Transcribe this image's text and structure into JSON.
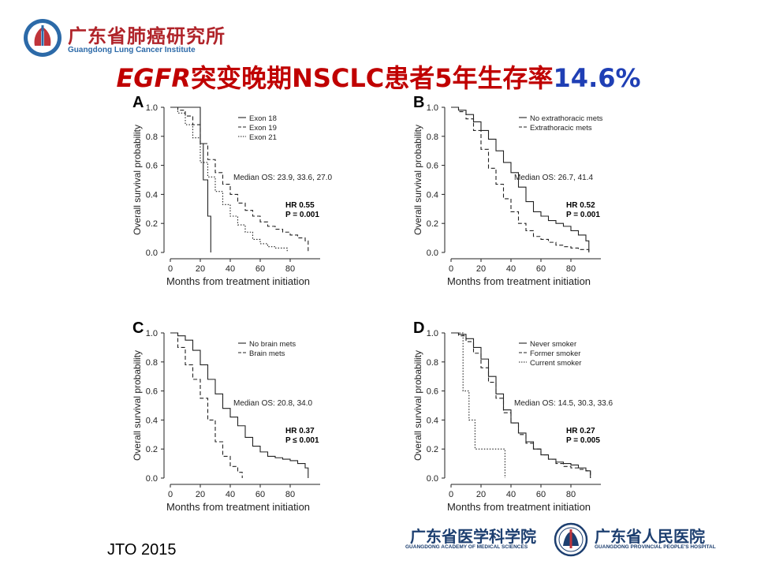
{
  "header": {
    "logo_cn": "广东省肺癌研究所",
    "logo_en": "Guangdong Lung Cancer Institute",
    "title_gene": "EGFR",
    "title_rest": "突变晚期NSCLC患者5年生存率",
    "title_value": "14.6%"
  },
  "colors": {
    "title_red": "#c00000",
    "title_blue": "#1f3fb5",
    "logo_red": "#b0242a",
    "logo_blue": "#1d3f70"
  },
  "chart_data": [
    {
      "type": "line",
      "panel_label": "A",
      "xlabel": "Months from treatment initiation",
      "ylabel": "Overall survival probability",
      "xlim": [
        0,
        100
      ],
      "ylim": [
        0,
        1.0
      ],
      "x_ticks": [
        "0",
        "20",
        "40",
        "60",
        "80"
      ],
      "y_ticks": [
        "0.0",
        "0.2",
        "0.4",
        "0.6",
        "0.8",
        "1.0"
      ],
      "annotation": "Median OS: 23.9, 33.6, 27.0",
      "hr": "HR 0.55",
      "p": "P = 0.001",
      "series": [
        {
          "name": "Exon 18",
          "style": "solid",
          "x": [
            0,
            20,
            20,
            22,
            22,
            25,
            25,
            27,
            27
          ],
          "y": [
            1.0,
            1.0,
            0.75,
            0.75,
            0.5,
            0.5,
            0.25,
            0.25,
            0.0
          ]
        },
        {
          "name": "Exon 19",
          "style": "dashed",
          "x": [
            0,
            5,
            10,
            15,
            20,
            25,
            30,
            35,
            40,
            45,
            50,
            55,
            60,
            65,
            70,
            75,
            80,
            85,
            90,
            92
          ],
          "y": [
            1.0,
            0.98,
            0.94,
            0.88,
            0.75,
            0.64,
            0.55,
            0.47,
            0.4,
            0.34,
            0.29,
            0.25,
            0.21,
            0.18,
            0.16,
            0.14,
            0.12,
            0.1,
            0.08,
            0.0
          ]
        },
        {
          "name": "Exon 21",
          "style": "dotted",
          "x": [
            0,
            5,
            10,
            15,
            20,
            25,
            30,
            35,
            40,
            45,
            50,
            55,
            60,
            65,
            70,
            75,
            78
          ],
          "y": [
            1.0,
            0.96,
            0.88,
            0.79,
            0.62,
            0.52,
            0.42,
            0.33,
            0.25,
            0.19,
            0.14,
            0.09,
            0.06,
            0.04,
            0.03,
            0.03,
            0.0
          ]
        }
      ]
    },
    {
      "type": "line",
      "panel_label": "B",
      "xlabel": "Months from treatment initiation",
      "ylabel": "Overall survival probability",
      "xlim": [
        0,
        100
      ],
      "ylim": [
        0,
        1.0
      ],
      "x_ticks": [
        "0",
        "20",
        "40",
        "60",
        "80"
      ],
      "y_ticks": [
        "0.0",
        "0.2",
        "0.4",
        "0.6",
        "0.8",
        "1.0"
      ],
      "annotation": "Median OS: 26.7, 41.4",
      "hr": "HR 0.52",
      "p": "P = 0.001",
      "series": [
        {
          "name": "No extrathoracic mets",
          "style": "solid",
          "x": [
            0,
            5,
            10,
            15,
            20,
            25,
            30,
            35,
            40,
            45,
            50,
            55,
            60,
            65,
            70,
            75,
            80,
            85,
            90,
            92
          ],
          "y": [
            1.0,
            0.98,
            0.95,
            0.9,
            0.84,
            0.78,
            0.7,
            0.62,
            0.55,
            0.45,
            0.35,
            0.28,
            0.25,
            0.22,
            0.2,
            0.18,
            0.15,
            0.12,
            0.08,
            0.0
          ]
        },
        {
          "name": "Extrathoracic mets",
          "style": "dashed",
          "x": [
            0,
            5,
            10,
            15,
            20,
            25,
            30,
            35,
            40,
            45,
            50,
            55,
            60,
            65,
            70,
            75,
            80,
            85,
            90,
            92
          ],
          "y": [
            1.0,
            0.97,
            0.92,
            0.84,
            0.71,
            0.58,
            0.47,
            0.37,
            0.28,
            0.2,
            0.15,
            0.11,
            0.09,
            0.07,
            0.05,
            0.04,
            0.03,
            0.02,
            0.02,
            0.0
          ]
        }
      ]
    },
    {
      "type": "line",
      "panel_label": "C",
      "xlabel": "Months from treatment initiation",
      "ylabel": "Overall survival probability",
      "xlim": [
        0,
        100
      ],
      "ylim": [
        0,
        1.0
      ],
      "x_ticks": [
        "0",
        "20",
        "40",
        "60",
        "80"
      ],
      "y_ticks": [
        "0.0",
        "0.2",
        "0.4",
        "0.6",
        "0.8",
        "1.0"
      ],
      "annotation": "Median OS: 20.8, 34.0",
      "hr": "HR 0.37",
      "p": "P ≤ 0.001",
      "series": [
        {
          "name": "No brain mets",
          "style": "solid",
          "x": [
            0,
            5,
            10,
            15,
            20,
            25,
            30,
            35,
            40,
            45,
            50,
            55,
            60,
            65,
            70,
            75,
            80,
            85,
            90,
            92
          ],
          "y": [
            1.0,
            0.98,
            0.95,
            0.88,
            0.78,
            0.68,
            0.58,
            0.48,
            0.42,
            0.36,
            0.28,
            0.22,
            0.18,
            0.15,
            0.14,
            0.13,
            0.12,
            0.1,
            0.07,
            0.0
          ]
        },
        {
          "name": "Brain mets",
          "style": "dashed",
          "x": [
            0,
            5,
            10,
            15,
            20,
            25,
            30,
            35,
            40,
            45,
            48
          ],
          "y": [
            1.0,
            0.9,
            0.78,
            0.68,
            0.55,
            0.4,
            0.25,
            0.15,
            0.08,
            0.04,
            0.0
          ]
        }
      ]
    },
    {
      "type": "line",
      "panel_label": "D",
      "xlabel": "Months from treatment initiation",
      "ylabel": "Overall survival probability",
      "xlim": [
        0,
        100
      ],
      "ylim": [
        0,
        1.0
      ],
      "x_ticks": [
        "0",
        "20",
        "40",
        "60",
        "80"
      ],
      "y_ticks": [
        "0.0",
        "0.2",
        "0.4",
        "0.6",
        "0.8",
        "1.0"
      ],
      "annotation": "Median OS: 14.5, 30.3, 33.6",
      "hr": "HR 0.27",
      "p": "P = 0.005",
      "series": [
        {
          "name": "Never smoker",
          "style": "solid",
          "x": [
            0,
            5,
            10,
            15,
            20,
            25,
            30,
            35,
            40,
            45,
            50,
            55,
            60,
            65,
            70,
            75,
            80,
            85,
            90,
            93
          ],
          "y": [
            1.0,
            0.99,
            0.96,
            0.9,
            0.82,
            0.7,
            0.58,
            0.47,
            0.38,
            0.31,
            0.25,
            0.2,
            0.16,
            0.13,
            0.11,
            0.1,
            0.09,
            0.07,
            0.05,
            0.0
          ]
        },
        {
          "name": "Former smoker",
          "style": "dashed",
          "x": [
            0,
            5,
            10,
            15,
            20,
            25,
            30,
            35,
            40,
            45,
            50,
            55,
            60,
            65,
            70,
            75,
            80,
            85,
            90,
            93
          ],
          "y": [
            1.0,
            0.98,
            0.94,
            0.86,
            0.76,
            0.66,
            0.55,
            0.45,
            0.38,
            0.3,
            0.24,
            0.2,
            0.16,
            0.13,
            0.1,
            0.08,
            0.07,
            0.06,
            0.05,
            0.0
          ]
        },
        {
          "name": "Current smoker",
          "style": "dotted",
          "x": [
            0,
            8,
            8,
            12,
            12,
            16,
            16,
            36,
            36
          ],
          "y": [
            1.0,
            1.0,
            0.6,
            0.6,
            0.4,
            0.4,
            0.2,
            0.2,
            0.0
          ]
        }
      ]
    }
  ],
  "footer": {
    "citation": "JTO 2015",
    "logo_left_cn": "广东省医学科学院",
    "logo_left_en": "GUANGDONG ACADEMY OF MEDICAL SCIENCES",
    "logo_right_cn": "广东省人民医院",
    "logo_right_en": "GUANGDONG PROVINCIAL PEOPLE'S HOSPITAL"
  }
}
